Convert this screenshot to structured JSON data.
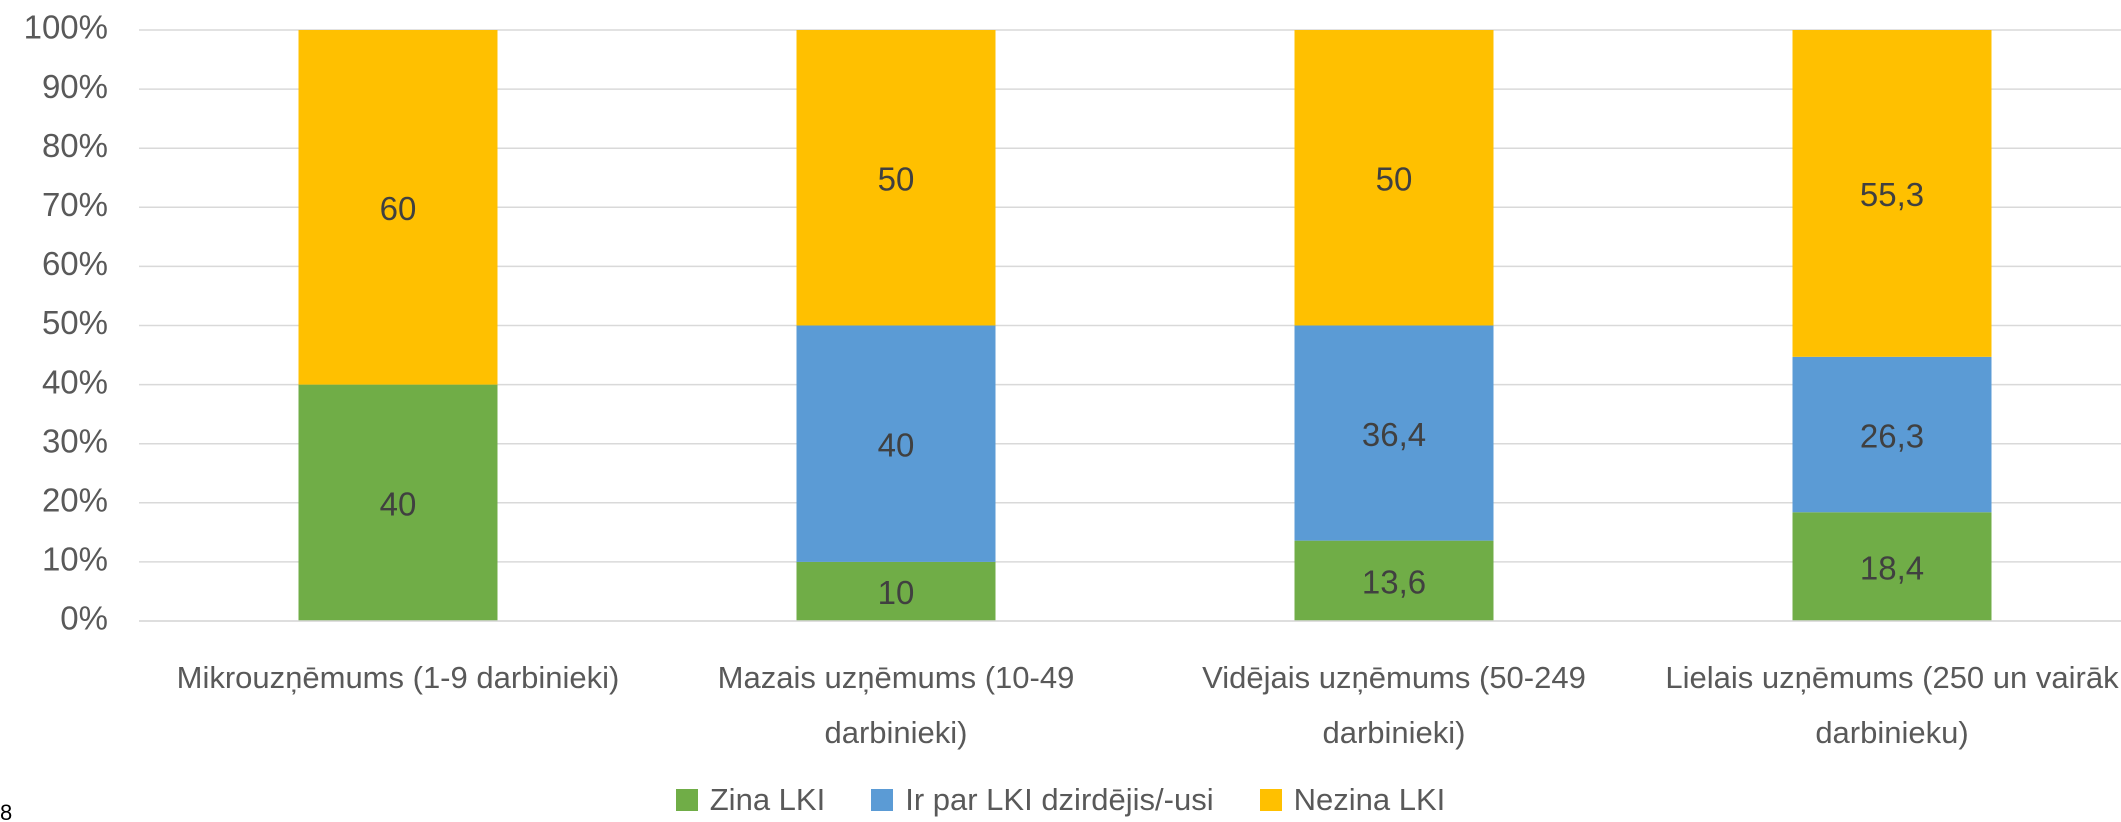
{
  "chart_data": {
    "type": "stacked_bar_100",
    "categories": [
      "Mikrouzņēmums (1-9 darbinieki)",
      "Mazais uzņēmums (10-49 darbinieki)",
      "Vidējais uzņēmums (50-249 darbinieki)",
      "Lielais uzņēmums (250 un vairāk darbinieku)"
    ],
    "series": [
      {
        "name": "Zina LKI",
        "color": "#70ad47",
        "values": [
          40,
          10,
          13.6,
          18.4
        ],
        "value_labels": [
          "40",
          "10",
          "13,6",
          "18,4"
        ]
      },
      {
        "name": "Ir par LKI dzirdējis/-usi",
        "color": "#5b9bd5",
        "values": [
          null,
          40,
          36.4,
          26.3
        ],
        "value_labels": [
          null,
          "40",
          "36,4",
          "26,3"
        ]
      },
      {
        "name": "Nezina LKI",
        "color": "#ffc000",
        "values": [
          60,
          50,
          50,
          55.3
        ],
        "value_labels": [
          "60",
          "50",
          "50",
          "55,3"
        ]
      }
    ],
    "ylim": [
      0,
      100
    ],
    "yticks": [
      {
        "value": 0,
        "label": "0%"
      },
      {
        "value": 10,
        "label": "10%"
      },
      {
        "value": 20,
        "label": "20%"
      },
      {
        "value": 30,
        "label": "30%"
      },
      {
        "value": 40,
        "label": "40%"
      },
      {
        "value": 50,
        "label": "50%"
      },
      {
        "value": 60,
        "label": "60%"
      },
      {
        "value": 70,
        "label": "70%"
      },
      {
        "value": 80,
        "label": "80%"
      },
      {
        "value": 90,
        "label": "90%"
      },
      {
        "value": 100,
        "label": "100%"
      }
    ],
    "grid": true,
    "legend": "bottom"
  },
  "page_number": "8"
}
